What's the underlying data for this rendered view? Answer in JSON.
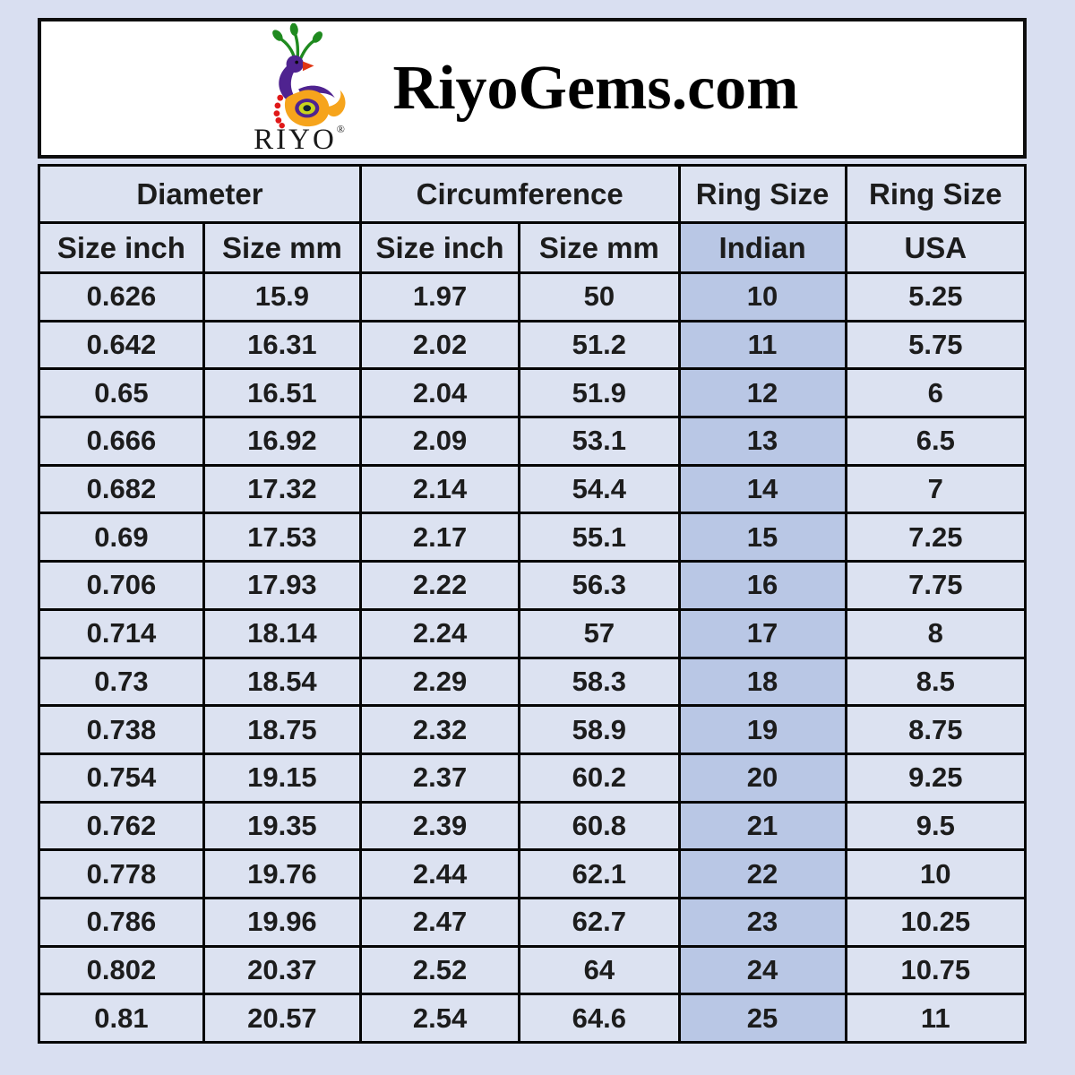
{
  "header": {
    "title": "RiyoGems.com",
    "logo_text": "RIYO",
    "registered_mark": "®"
  },
  "table": {
    "group_headers": [
      {
        "label": "Diameter"
      },
      {
        "label": "Circumference"
      },
      {
        "label": "Ring Size"
      },
      {
        "label": "Ring Size"
      }
    ],
    "sub_headers": [
      "Size inch",
      "Size mm",
      "Size inch",
      "Size mm",
      "Indian",
      "USA"
    ]
  },
  "colors": {
    "page_bg": "#d9dff1",
    "header_box_bg": "#ffffff",
    "cell_bg": "#dce2f1",
    "indian_column_bg": "#b9c7e5",
    "grid_border": "#050505",
    "logo_purple": "#4f2390",
    "logo_orange": "#f6a41c",
    "logo_green": "#1f8a1f",
    "logo_red": "#e01818"
  },
  "chart_data": {
    "type": "table",
    "title": "RiyoGems.com ring size conversion chart",
    "columns": [
      "Diameter Size inch",
      "Diameter Size mm",
      "Circumference Size inch",
      "Circumference Size mm",
      "Ring Size Indian",
      "Ring Size USA"
    ],
    "rows": [
      [
        0.626,
        15.9,
        1.97,
        50,
        10,
        5.25
      ],
      [
        0.642,
        16.31,
        2.02,
        51.2,
        11,
        5.75
      ],
      [
        0.65,
        16.51,
        2.04,
        51.9,
        12,
        6
      ],
      [
        0.666,
        16.92,
        2.09,
        53.1,
        13,
        6.5
      ],
      [
        0.682,
        17.32,
        2.14,
        54.4,
        14,
        7
      ],
      [
        0.69,
        17.53,
        2.17,
        55.1,
        15,
        7.25
      ],
      [
        0.706,
        17.93,
        2.22,
        56.3,
        16,
        7.75
      ],
      [
        0.714,
        18.14,
        2.24,
        57,
        17,
        8
      ],
      [
        0.73,
        18.54,
        2.29,
        58.3,
        18,
        8.5
      ],
      [
        0.738,
        18.75,
        2.32,
        58.9,
        19,
        8.75
      ],
      [
        0.754,
        19.15,
        2.37,
        60.2,
        20,
        9.25
      ],
      [
        0.762,
        19.35,
        2.39,
        60.8,
        21,
        9.5
      ],
      [
        0.778,
        19.76,
        2.44,
        62.1,
        22,
        10
      ],
      [
        0.786,
        19.96,
        2.47,
        62.7,
        23,
        10.25
      ],
      [
        0.802,
        20.37,
        2.52,
        64,
        24,
        10.75
      ],
      [
        0.81,
        20.57,
        2.54,
        64.6,
        25,
        11
      ]
    ]
  }
}
